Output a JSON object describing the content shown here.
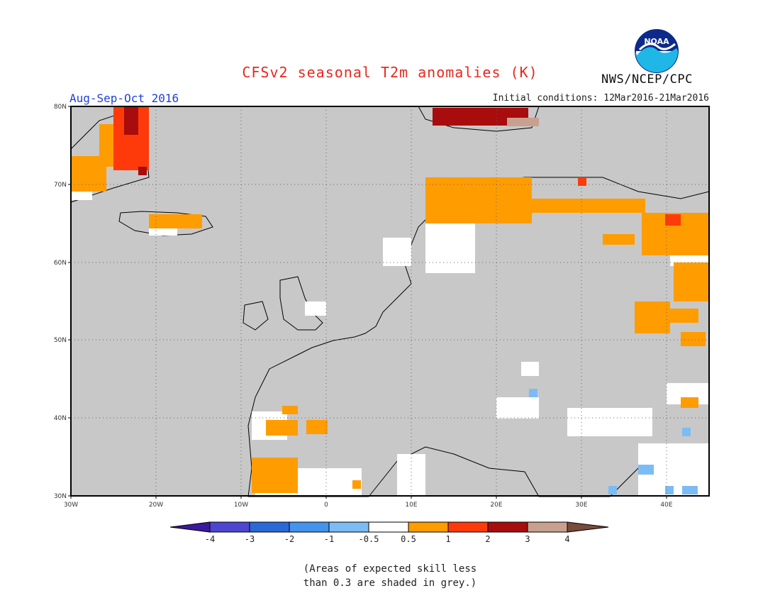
{
  "header": {
    "title": "CFSv2 seasonal T2m anomalies (K)",
    "season": "Aug-Sep-Oct 2016",
    "initial_conditions": "Initial conditions: 12Mar2016-21Mar2016",
    "agency": "NWS/NCEP/CPC",
    "logo_text": "NOAA"
  },
  "map": {
    "region": "Europe",
    "lon_range": [
      -30,
      45
    ],
    "lat_range": [
      30,
      80
    ],
    "y_ticks": [
      "80N",
      "70N",
      "60N",
      "50N",
      "40N",
      "30N"
    ],
    "x_ticks": [
      "30W",
      "20W",
      "10W",
      "0",
      "10E",
      "20E",
      "30E",
      "40E"
    ],
    "ocean_color": "#c8c8c8",
    "grid": true
  },
  "colorbar": {
    "tick_labels": [
      "-4",
      "-3",
      "-2",
      "-1",
      "-0.5",
      "0.5",
      "1",
      "2",
      "3",
      "4"
    ],
    "colors": [
      "#3a1a9c",
      "#4d46d0",
      "#2a6ad8",
      "#4294ec",
      "#7cbcf4",
      "#ffffff",
      "#ff9c00",
      "#ff3a0a",
      "#a80c0c",
      "#c8a090",
      "#7a4a3a"
    ]
  },
  "note": {
    "line1": "(Areas of expected skill less",
    "line2": "than 0.3 are shaded in grey.)"
  }
}
